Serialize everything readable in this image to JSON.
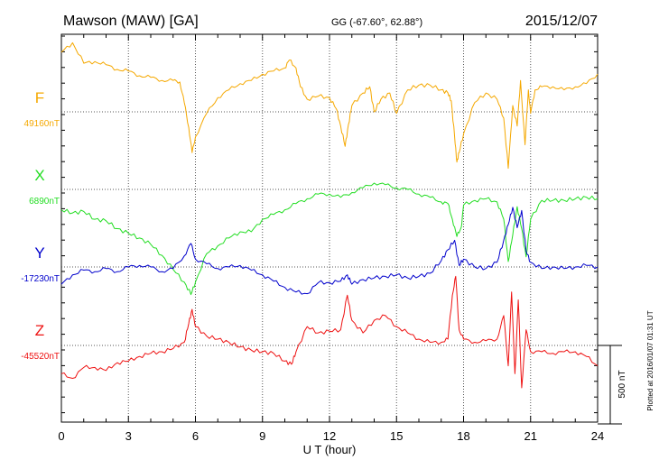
{
  "header": {
    "station": "Mawson (MAW)  [GA]",
    "coords": "GG (-67.60°,  62.88°)",
    "date": "2015/12/07"
  },
  "side_note": "Plotted at 2016/01/07 01:31  UT",
  "scale_label": "500 nT",
  "colors": {
    "F": "#f5a800",
    "X": "#22dd22",
    "Y": "#0000cc",
    "Z": "#ee1111"
  },
  "chart_data": {
    "type": "line",
    "title": "",
    "xlabel": "U T (hour)",
    "xlim": [
      0,
      24
    ],
    "xticks": [
      "0",
      "3",
      "6",
      "9",
      "12",
      "15",
      "18",
      "21",
      "24"
    ],
    "scale_nT": 500,
    "series": [
      {
        "name": "F",
        "baseline_label": "49160nT",
        "points": [
          [
            0,
            49540
          ],
          [
            0.5,
            49600
          ],
          [
            1,
            49470
          ],
          [
            1.5,
            49480
          ],
          [
            2,
            49460
          ],
          [
            2.5,
            49430
          ],
          [
            3,
            49420
          ],
          [
            3.5,
            49390
          ],
          [
            4,
            49380
          ],
          [
            4.5,
            49360
          ],
          [
            5,
            49360
          ],
          [
            5.3,
            49350
          ],
          [
            5.5,
            49220
          ],
          [
            5.7,
            49060
          ],
          [
            5.85,
            48900
          ],
          [
            6,
            49000
          ],
          [
            6.5,
            49150
          ],
          [
            7,
            49250
          ],
          [
            7.5,
            49300
          ],
          [
            8,
            49340
          ],
          [
            8.5,
            49360
          ],
          [
            9,
            49400
          ],
          [
            9.5,
            49420
          ],
          [
            10,
            49440
          ],
          [
            10.2,
            49490
          ],
          [
            10.5,
            49440
          ],
          [
            10.7,
            49320
          ],
          [
            11,
            49240
          ],
          [
            11.5,
            49260
          ],
          [
            12,
            49250
          ],
          [
            12.3,
            49180
          ],
          [
            12.5,
            49070
          ],
          [
            12.7,
            48940
          ],
          [
            12.85,
            49080
          ],
          [
            13,
            49200
          ],
          [
            13.5,
            49280
          ],
          [
            13.8,
            49320
          ],
          [
            14,
            49160
          ],
          [
            14.3,
            49240
          ],
          [
            14.7,
            49280
          ],
          [
            15,
            49150
          ],
          [
            15.5,
            49300
          ],
          [
            16,
            49330
          ],
          [
            16.5,
            49330
          ],
          [
            17,
            49300
          ],
          [
            17.3,
            49280
          ],
          [
            17.45,
            49230
          ],
          [
            17.6,
            49000
          ],
          [
            17.7,
            48840
          ],
          [
            17.8,
            48900
          ],
          [
            18,
            49020
          ],
          [
            18.5,
            49220
          ],
          [
            19,
            49280
          ],
          [
            19.5,
            49240
          ],
          [
            19.8,
            49120
          ],
          [
            20,
            48800
          ],
          [
            20.2,
            49200
          ],
          [
            20.4,
            49070
          ],
          [
            20.55,
            49360
          ],
          [
            20.75,
            48950
          ],
          [
            20.9,
            49300
          ],
          [
            21,
            49150
          ],
          [
            21.2,
            49300
          ],
          [
            21.5,
            49320
          ],
          [
            22,
            49320
          ],
          [
            22.5,
            49300
          ],
          [
            23,
            49320
          ],
          [
            23.5,
            49340
          ],
          [
            24,
            49400
          ]
        ]
      },
      {
        "name": "X",
        "baseline_label": "6890nT",
        "points": [
          [
            0,
            6760
          ],
          [
            0.5,
            6740
          ],
          [
            1,
            6750
          ],
          [
            1.5,
            6700
          ],
          [
            2,
            6690
          ],
          [
            2.5,
            6640
          ],
          [
            3,
            6610
          ],
          [
            3.5,
            6580
          ],
          [
            4,
            6540
          ],
          [
            4.5,
            6470
          ],
          [
            5,
            6380
          ],
          [
            5.5,
            6300
          ],
          [
            5.8,
            6220
          ],
          [
            6,
            6300
          ],
          [
            6.5,
            6480
          ],
          [
            7,
            6530
          ],
          [
            7.5,
            6580
          ],
          [
            8,
            6620
          ],
          [
            8.5,
            6620
          ],
          [
            9,
            6700
          ],
          [
            9.5,
            6730
          ],
          [
            10,
            6760
          ],
          [
            10.5,
            6800
          ],
          [
            11,
            6830
          ],
          [
            11.5,
            6860
          ],
          [
            12,
            6860
          ],
          [
            12.5,
            6840
          ],
          [
            13,
            6870
          ],
          [
            13.5,
            6900
          ],
          [
            14,
            6930
          ],
          [
            14.5,
            6920
          ],
          [
            15,
            6900
          ],
          [
            15.5,
            6890
          ],
          [
            16,
            6860
          ],
          [
            16.5,
            6840
          ],
          [
            17,
            6810
          ],
          [
            17.3,
            6800
          ],
          [
            17.5,
            6700
          ],
          [
            17.7,
            6590
          ],
          [
            17.9,
            6650
          ],
          [
            18,
            6790
          ],
          [
            18.5,
            6820
          ],
          [
            19,
            6830
          ],
          [
            19.5,
            6810
          ],
          [
            19.8,
            6700
          ],
          [
            20,
            6430
          ],
          [
            20.2,
            6600
          ],
          [
            20.4,
            6780
          ],
          [
            20.6,
            6640
          ],
          [
            20.8,
            6460
          ],
          [
            21,
            6700
          ],
          [
            21.5,
            6820
          ],
          [
            22,
            6820
          ],
          [
            22.5,
            6820
          ],
          [
            23,
            6830
          ],
          [
            23.5,
            6840
          ],
          [
            24,
            6830
          ]
        ]
      },
      {
        "name": "Y",
        "baseline_label": "-17230nT",
        "points": [
          [
            0,
            -17340
          ],
          [
            0.5,
            -17280
          ],
          [
            1,
            -17250
          ],
          [
            1.5,
            -17260
          ],
          [
            2,
            -17240
          ],
          [
            2.5,
            -17260
          ],
          [
            3,
            -17230
          ],
          [
            3.5,
            -17220
          ],
          [
            4,
            -17230
          ],
          [
            4.5,
            -17260
          ],
          [
            5,
            -17240
          ],
          [
            5.5,
            -17160
          ],
          [
            5.8,
            -17080
          ],
          [
            6,
            -17180
          ],
          [
            6.5,
            -17210
          ],
          [
            7,
            -17240
          ],
          [
            7.5,
            -17230
          ],
          [
            8,
            -17220
          ],
          [
            8.5,
            -17250
          ],
          [
            9,
            -17280
          ],
          [
            9.5,
            -17320
          ],
          [
            10,
            -17360
          ],
          [
            10.5,
            -17390
          ],
          [
            11,
            -17400
          ],
          [
            11.5,
            -17330
          ],
          [
            12,
            -17330
          ],
          [
            12.5,
            -17320
          ],
          [
            12.8,
            -17280
          ],
          [
            13,
            -17340
          ],
          [
            13.5,
            -17310
          ],
          [
            14,
            -17300
          ],
          [
            14.5,
            -17290
          ],
          [
            15,
            -17280
          ],
          [
            15.5,
            -17300
          ],
          [
            16,
            -17290
          ],
          [
            16.5,
            -17270
          ],
          [
            17,
            -17190
          ],
          [
            17.3,
            -17120
          ],
          [
            17.6,
            -17060
          ],
          [
            17.8,
            -17220
          ],
          [
            18,
            -17180
          ],
          [
            18.5,
            -17230
          ],
          [
            19,
            -17240
          ],
          [
            19.5,
            -17200
          ],
          [
            19.8,
            -17060
          ],
          [
            20,
            -16960
          ],
          [
            20.2,
            -16850
          ],
          [
            20.4,
            -16980
          ],
          [
            20.6,
            -16870
          ],
          [
            20.8,
            -17130
          ],
          [
            21,
            -17200
          ],
          [
            21.5,
            -17240
          ],
          [
            22,
            -17230
          ],
          [
            22.5,
            -17240
          ],
          [
            23,
            -17230
          ],
          [
            23.5,
            -17220
          ],
          [
            24,
            -17230
          ]
        ]
      },
      {
        "name": "Z",
        "baseline_label": "-45520nT",
        "points": [
          [
            0,
            -45700
          ],
          [
            0.5,
            -45730
          ],
          [
            1,
            -45660
          ],
          [
            1.5,
            -45660
          ],
          [
            2,
            -45680
          ],
          [
            2.5,
            -45630
          ],
          [
            3,
            -45620
          ],
          [
            3.5,
            -45590
          ],
          [
            4,
            -45570
          ],
          [
            4.5,
            -45560
          ],
          [
            5,
            -45540
          ],
          [
            5.5,
            -45500
          ],
          [
            5.7,
            -45380
          ],
          [
            5.85,
            -45290
          ],
          [
            6,
            -45400
          ],
          [
            6.5,
            -45460
          ],
          [
            7,
            -45480
          ],
          [
            7.5,
            -45500
          ],
          [
            8,
            -45530
          ],
          [
            8.5,
            -45550
          ],
          [
            9,
            -45560
          ],
          [
            9.5,
            -45570
          ],
          [
            10,
            -45620
          ],
          [
            10.3,
            -45640
          ],
          [
            10.5,
            -45560
          ],
          [
            11,
            -45400
          ],
          [
            11.5,
            -45440
          ],
          [
            12,
            -45430
          ],
          [
            12.5,
            -45420
          ],
          [
            12.8,
            -45200
          ],
          [
            13,
            -45360
          ],
          [
            13.5,
            -45440
          ],
          [
            14,
            -45360
          ],
          [
            14.5,
            -45330
          ],
          [
            15,
            -45400
          ],
          [
            15.5,
            -45440
          ],
          [
            16,
            -45480
          ],
          [
            16.5,
            -45500
          ],
          [
            17,
            -45500
          ],
          [
            17.3,
            -45480
          ],
          [
            17.5,
            -45200
          ],
          [
            17.65,
            -45080
          ],
          [
            17.8,
            -45420
          ],
          [
            18,
            -45480
          ],
          [
            18.5,
            -45500
          ],
          [
            19,
            -45490
          ],
          [
            19.5,
            -45480
          ],
          [
            19.8,
            -45330
          ],
          [
            20,
            -45650
          ],
          [
            20.15,
            -45180
          ],
          [
            20.3,
            -45700
          ],
          [
            20.45,
            -45230
          ],
          [
            20.6,
            -45790
          ],
          [
            20.8,
            -45420
          ],
          [
            21,
            -45560
          ],
          [
            21.5,
            -45560
          ],
          [
            22,
            -45570
          ],
          [
            22.5,
            -45560
          ],
          [
            23,
            -45560
          ],
          [
            23.5,
            -45590
          ],
          [
            24,
            -45650
          ]
        ]
      }
    ]
  }
}
